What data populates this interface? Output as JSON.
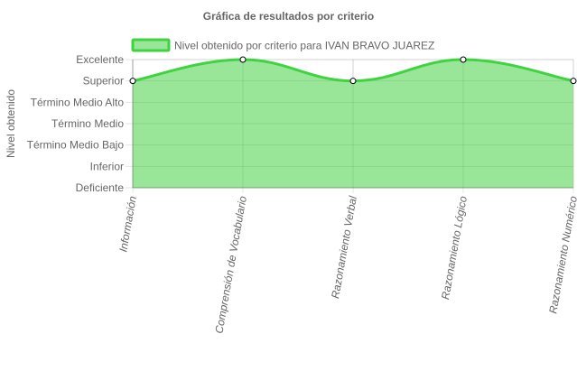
{
  "chart_data": {
    "type": "area",
    "title": "Gráfica de resultados por criterio",
    "ylabel": "Nivel obtenido",
    "xlabel": "",
    "categories": [
      "Información",
      "Comprensión de Vocabulario",
      "Razonamiento Verbal",
      "Razonamiento Lógico",
      "Razonamiento Numérico"
    ],
    "y_levels": [
      "Deficiente",
      "Inferior",
      "Término Medio Bajo",
      "Término Medio",
      "Término Medio Alto",
      "Superior",
      "Excelente"
    ],
    "ylim": [
      0,
      6
    ],
    "grid": true,
    "legend_position": "top",
    "series": [
      {
        "name": "Nivel obtenido por criterio para IVAN BRAVO JUAREZ",
        "values": [
          5,
          6,
          5,
          6,
          5
        ],
        "value_labels": [
          "Superior",
          "Excelente",
          "Superior",
          "Excelente",
          "Superior"
        ],
        "line_color": "#3fd43f",
        "fill_color": "#99e699",
        "point_fill": "#ffffff",
        "point_stroke": "#000000"
      }
    ]
  }
}
